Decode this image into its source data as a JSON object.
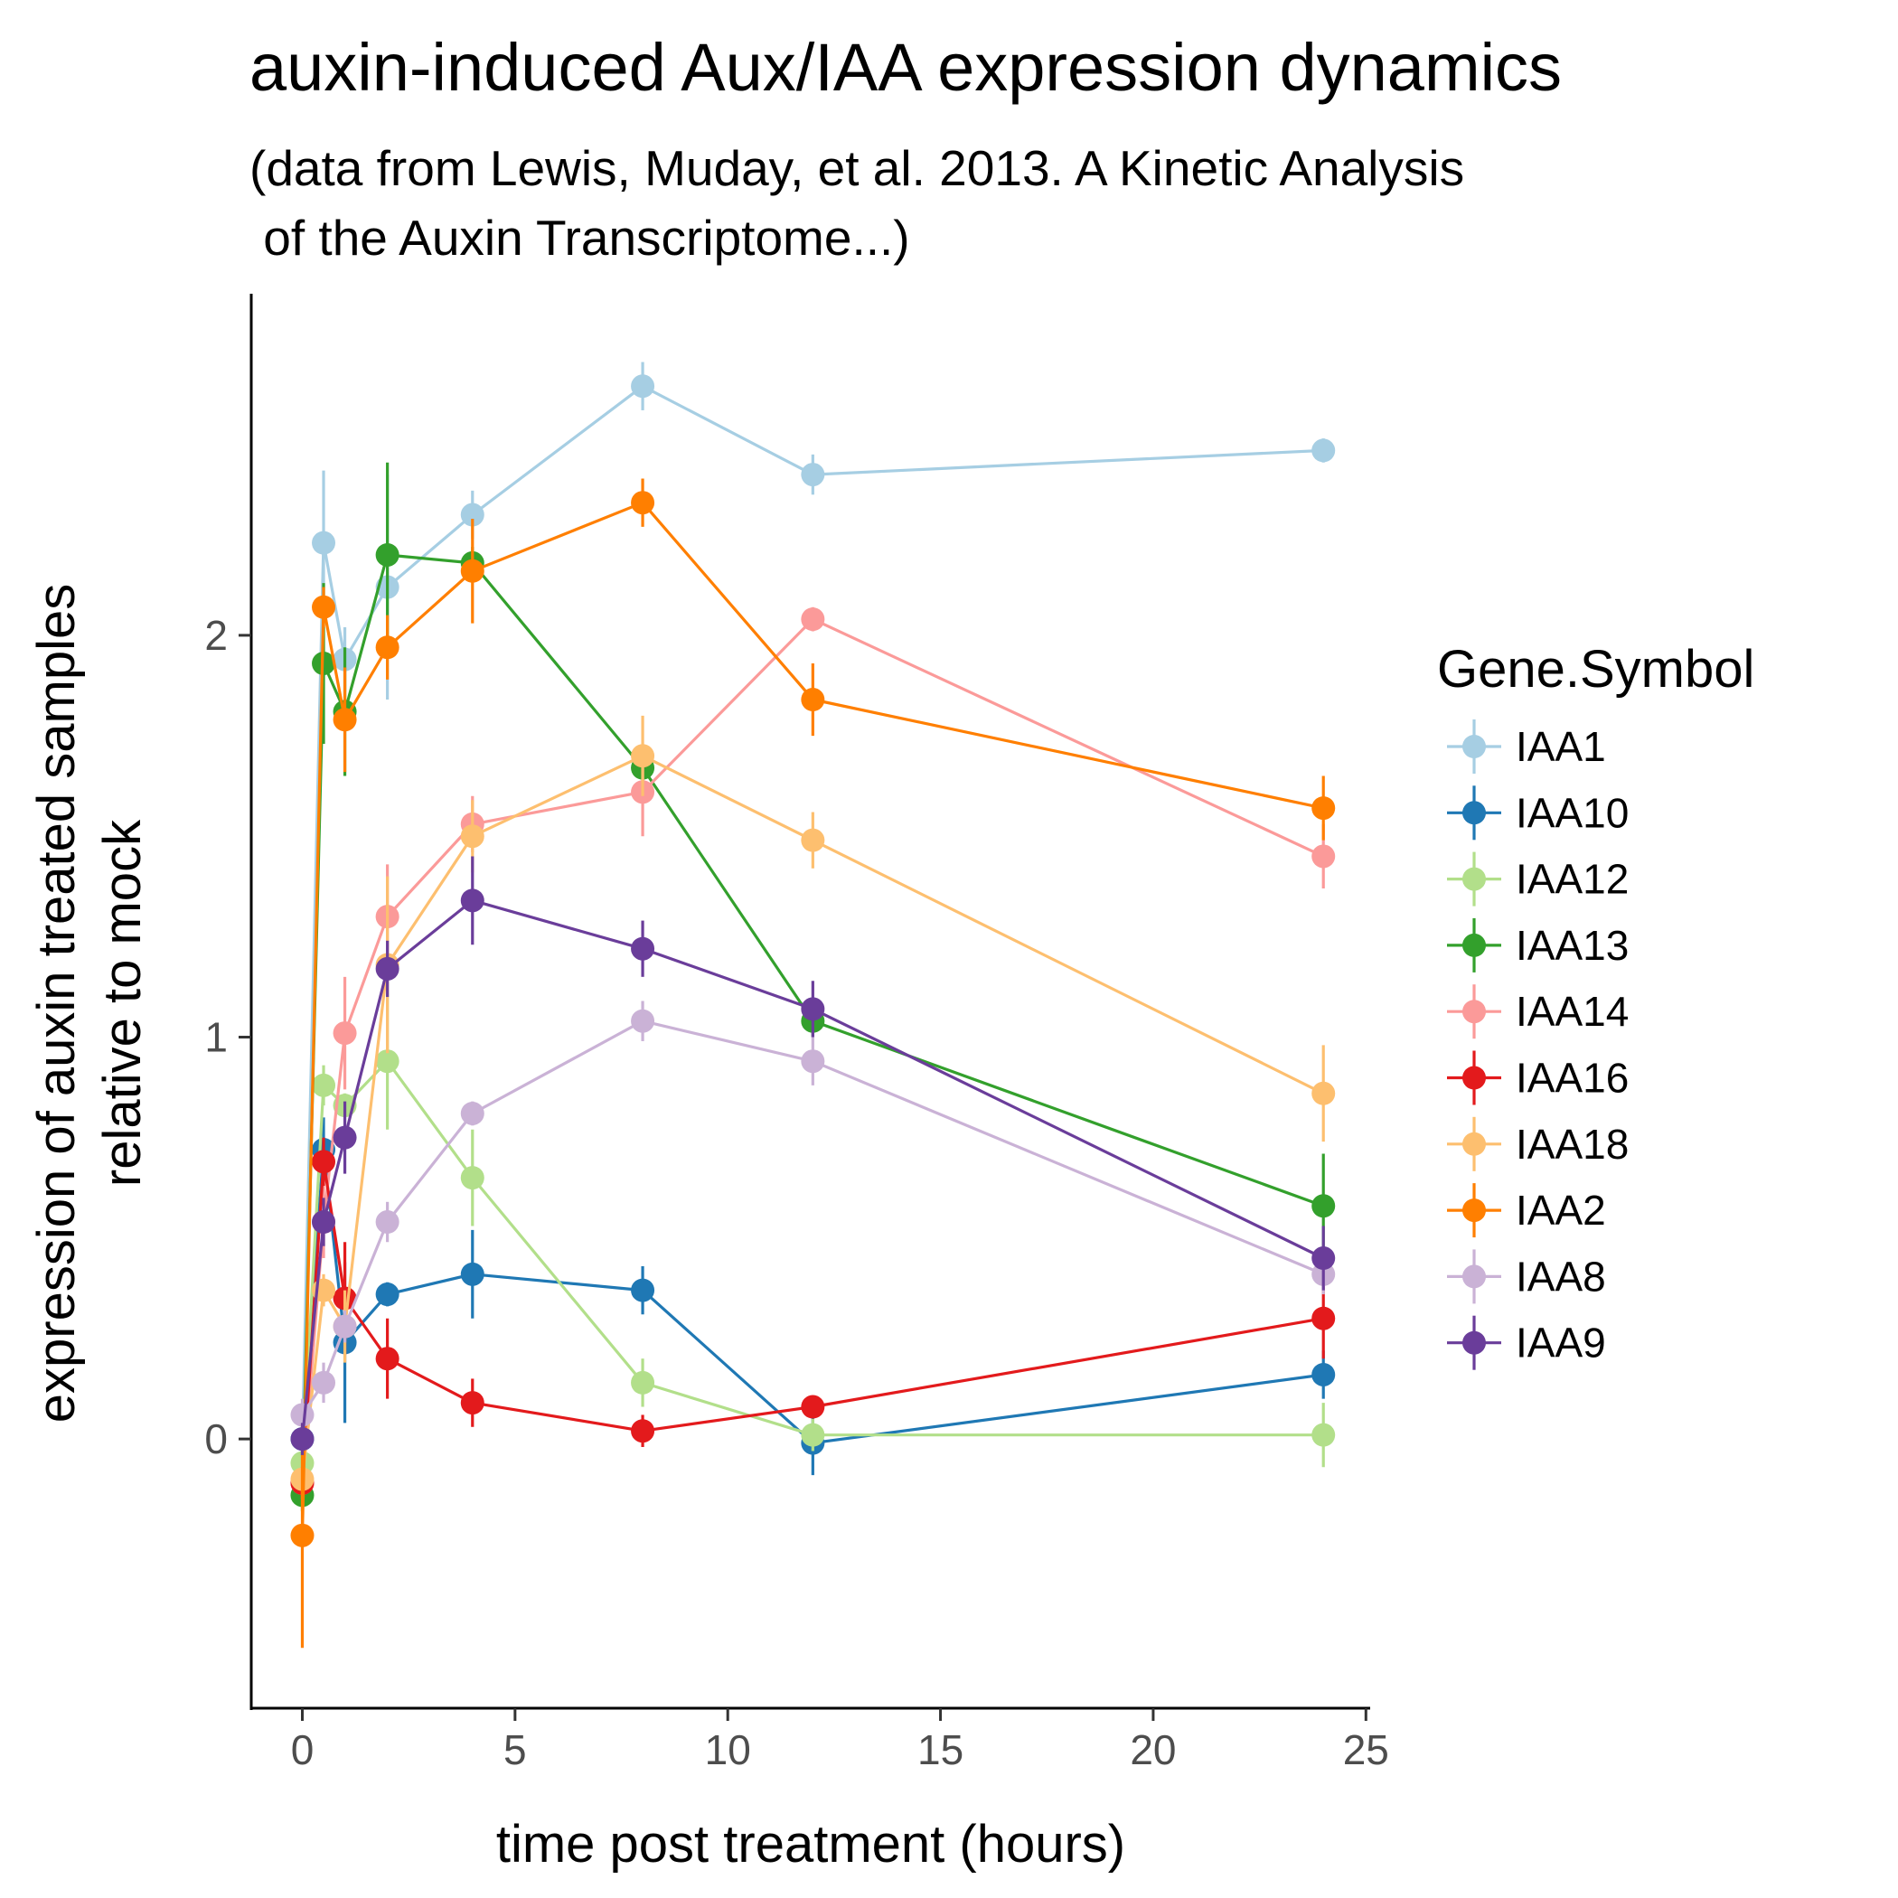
{
  "chart_data": {
    "type": "line",
    "title": "auxin-induced Aux/IAA expression dynamics",
    "subtitle_lines": [
      "(data from Lewis, Muday, et al. 2013. A Kinetic Analysis",
      " of the Auxin Transcriptome...)"
    ],
    "xlabel": "time post treatment (hours)",
    "ylabel_lines": [
      "expression of auxin treated samples",
      "relative to mock"
    ],
    "xlim": [
      -1.2,
      25.1
    ],
    "ylim": [
      -0.67,
      2.85
    ],
    "x_ticks": [
      0,
      5,
      10,
      15,
      20,
      25
    ],
    "y_ticks": [
      0,
      1,
      2
    ],
    "grid": false,
    "legend_title": "Gene.Symbol",
    "legend_position": "right",
    "x": [
      0,
      0.5,
      1,
      2,
      4,
      8,
      12,
      24
    ],
    "series": [
      {
        "name": "IAA1",
        "color": "#a6cee3",
        "values": [
          0.0,
          2.23,
          1.94,
          2.12,
          2.3,
          2.62,
          2.4,
          2.46
        ],
        "errors": [
          0.05,
          0.18,
          0.08,
          0.28,
          0.06,
          0.06,
          0.05,
          0.03
        ]
      },
      {
        "name": "IAA10",
        "color": "#1f78b4",
        "values": [
          0.0,
          0.72,
          0.24,
          0.36,
          0.41,
          0.37,
          -0.01,
          0.16
        ],
        "errors": [
          0.05,
          0.08,
          0.2,
          0.03,
          0.11,
          0.06,
          0.08,
          0.06
        ]
      },
      {
        "name": "IAA12",
        "color": "#b2df8a",
        "values": [
          -0.06,
          0.88,
          0.83,
          0.94,
          0.65,
          0.14,
          0.01,
          0.01
        ],
        "errors": [
          0.05,
          0.05,
          0.03,
          0.17,
          0.12,
          0.06,
          0.04,
          0.08
        ]
      },
      {
        "name": "IAA13",
        "color": "#33a02c",
        "values": [
          -0.14,
          1.93,
          1.81,
          2.2,
          2.18,
          1.67,
          1.04,
          0.58
        ],
        "errors": [
          0.04,
          0.2,
          0.16,
          0.23,
          0.04,
          0.05,
          0.04,
          0.13
        ]
      },
      {
        "name": "IAA14",
        "color": "#fb9a99",
        "values": [
          -0.11,
          0.54,
          1.01,
          1.3,
          1.53,
          1.61,
          2.04,
          1.45
        ],
        "errors": [
          0.04,
          0.09,
          0.14,
          0.13,
          0.07,
          0.11,
          0.03,
          0.08
        ]
      },
      {
        "name": "IAA16",
        "color": "#e31a1c",
        "values": [
          -0.11,
          0.69,
          0.35,
          0.2,
          0.09,
          0.02,
          0.08,
          0.3
        ],
        "errors": [
          0.04,
          0.06,
          0.14,
          0.1,
          0.06,
          0.04,
          0.02,
          0.1
        ]
      },
      {
        "name": "IAA18",
        "color": "#fdbf6f",
        "values": [
          -0.1,
          0.37,
          0.28,
          1.18,
          1.5,
          1.7,
          1.49,
          0.86
        ],
        "errors": [
          0.04,
          0.04,
          0.09,
          0.22,
          0.09,
          0.1,
          0.07,
          0.12
        ]
      },
      {
        "name": "IAA2",
        "color": "#ff7f00",
        "values": [
          -0.24,
          2.07,
          1.79,
          1.97,
          2.16,
          2.33,
          1.84,
          1.57
        ],
        "errors": [
          0.28,
          0.05,
          0.13,
          0.08,
          0.13,
          0.06,
          0.09,
          0.08
        ]
      },
      {
        "name": "IAA8",
        "color": "#cab2d6",
        "values": [
          0.06,
          0.14,
          0.28,
          0.54,
          0.81,
          1.04,
          0.94,
          0.41
        ],
        "errors": [
          0.04,
          0.05,
          0.04,
          0.05,
          0.03,
          0.05,
          0.06,
          0.05
        ]
      },
      {
        "name": "IAA9",
        "color": "#6a3d9a",
        "values": [
          0.0,
          0.54,
          0.75,
          1.17,
          1.34,
          1.22,
          1.07,
          0.45
        ],
        "errors": [
          0.04,
          0.06,
          0.09,
          0.07,
          0.11,
          0.07,
          0.07,
          0.08
        ]
      }
    ]
  }
}
